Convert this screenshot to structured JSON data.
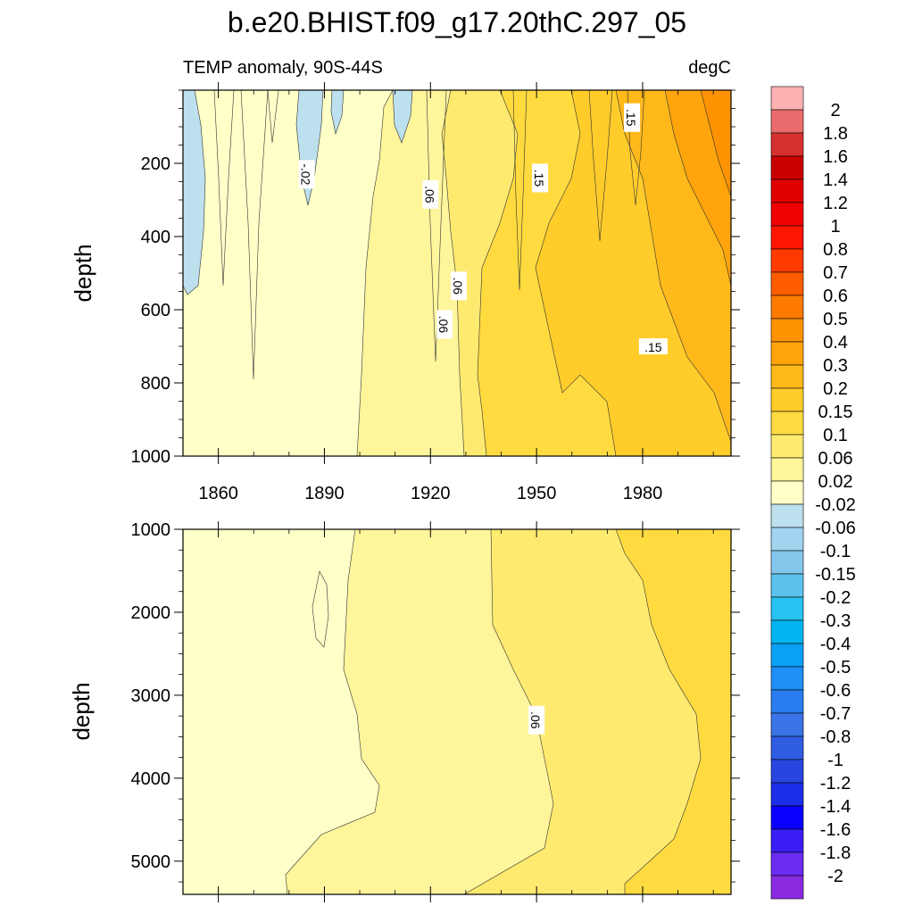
{
  "chart_data": {
    "type": "heatmap",
    "title": "b.e20.BHIST.f09_g17.20thC.297_05",
    "subtitle_left": "TEMP anomaly, 90S-44S",
    "subtitle_right": "degC",
    "xlabel": "",
    "x_range": [
      1850,
      2005
    ],
    "x_ticks": [
      1860,
      1890,
      1920,
      1950,
      1980
    ],
    "x_tick_labels": [
      "1860",
      "1890",
      "1920",
      "1950",
      "1980"
    ],
    "panels": [
      {
        "name": "upper",
        "ylabel": "depth",
        "y_range": [
          0,
          1000
        ],
        "y_inverted": true,
        "y_ticks": [
          200,
          400,
          600,
          800,
          1000
        ],
        "y_tick_labels": [
          "200",
          "400",
          "600",
          "800",
          "1000"
        ],
        "contour_labels": [
          {
            "text": "-.02",
            "year": 1885,
            "depth": 230
          },
          {
            "text": ".06",
            "year": 1920,
            "depth": 285
          },
          {
            "text": ".06",
            "year": 1928,
            "depth": 535
          },
          {
            "text": ".06",
            "year": 1924,
            "depth": 640
          },
          {
            "text": ".15",
            "year": 1951,
            "depth": 240
          },
          {
            "text": ".15",
            "year": 1977,
            "depth": 75
          },
          {
            "text": ".15",
            "year": 1983,
            "depth": 700
          }
        ]
      },
      {
        "name": "lower",
        "ylabel": "depth",
        "y_range": [
          1000,
          5400
        ],
        "y_inverted": true,
        "y_ticks": [
          1000,
          2000,
          3000,
          4000,
          5000
        ],
        "y_tick_labels": [
          "1000",
          "2000",
          "3000",
          "4000",
          "5000"
        ],
        "contour_labels": [
          {
            "text": ".06",
            "year": 1950,
            "depth": 3300
          }
        ]
      }
    ],
    "colorbar": {
      "levels": [
        "-2",
        "-1.8",
        "-1.6",
        "-1.4",
        "-1.2",
        "-1",
        "-0.8",
        "-0.7",
        "-0.6",
        "-0.5",
        "-0.4",
        "-0.3",
        "-0.2",
        "-0.15",
        "-0.1",
        "-0.06",
        "-0.02",
        "0.02",
        "0.06",
        "0.1",
        "0.15",
        "0.2",
        "0.3",
        "0.4",
        "0.5",
        "0.6",
        "0.7",
        "0.8",
        "1",
        "1.2",
        "1.4",
        "1.6",
        "1.8",
        "2"
      ],
      "colors": [
        "#8a2be2",
        "#6b2bf0",
        "#3b1df5",
        "#0a00ff",
        "#1c2ee8",
        "#2845e0",
        "#2f5ce0",
        "#3a74e6",
        "#2a7df0",
        "#1d8ff5",
        "#0aa0f5",
        "#00b5f0",
        "#27c2f0",
        "#5bc3ee",
        "#85c7ec",
        "#a2d3ef",
        "#bde0ee",
        "#ffffc8",
        "#fff59b",
        "#ffea70",
        "#ffdb40",
        "#ffcc2a",
        "#ffb91a",
        "#ffa40a",
        "#ff9200",
        "#ff7a00",
        "#ff5c00",
        "#ff3a00",
        "#ff1500",
        "#f00000",
        "#e00000",
        "#c90000",
        "#d8302e",
        "#ea6c6c",
        "#ffb2b2"
      ]
    }
  }
}
